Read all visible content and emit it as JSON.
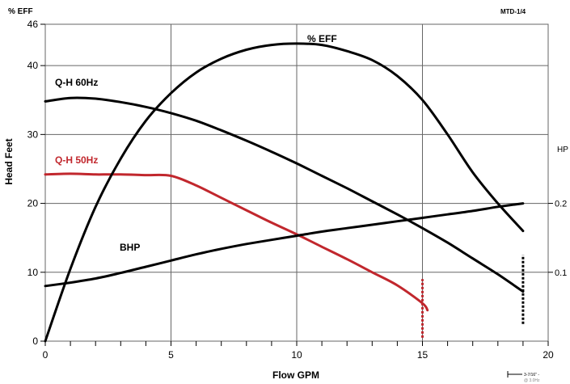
{
  "chart_data": {
    "type": "line",
    "model": "MTD-1/4",
    "top_left_label": "% EFF",
    "xlabel": "Flow GPM",
    "ylabel": "Head Feet",
    "y2label": "HP",
    "xlim": [
      0,
      20
    ],
    "ylim": [
      0,
      46
    ],
    "y2lim": [
      0,
      0.46
    ],
    "x_ticks": [
      0,
      5,
      10,
      15,
      20
    ],
    "x_tick_labels": [
      "0",
      "5",
      "10",
      "15",
      "20"
    ],
    "y_ticks": [
      0,
      10,
      20,
      30,
      40,
      46
    ],
    "y_tick_labels": [
      "0",
      "10",
      "20",
      "30",
      "40",
      "46"
    ],
    "y2_ticks": [
      0.1,
      0.2
    ],
    "y2_tick_labels": [
      "0.1",
      "0.2"
    ],
    "grid": true,
    "series": [
      {
        "name": "Q-H 60Hz",
        "color": "#000000",
        "axis": "left",
        "x": [
          0,
          1,
          2,
          3,
          4,
          5,
          6,
          7,
          8,
          9,
          10,
          11,
          12,
          13,
          14,
          15,
          16,
          17,
          18,
          19
        ],
        "y": [
          34.8,
          35.3,
          35.2,
          34.7,
          34.0,
          33.1,
          32.0,
          30.6,
          29.1,
          27.5,
          25.8,
          24.0,
          22.2,
          20.3,
          18.4,
          16.4,
          14.3,
          12.0,
          9.7,
          7.2
        ]
      },
      {
        "name": "Q-H 50Hz",
        "color": "#c1272d",
        "axis": "left",
        "x": [
          0,
          1,
          2,
          3,
          4,
          5,
          6,
          7,
          8,
          9,
          10,
          11,
          12,
          13,
          14,
          15,
          15.2
        ],
        "y": [
          24.2,
          24.3,
          24.2,
          24.2,
          24.1,
          24.0,
          22.6,
          20.8,
          19.0,
          17.2,
          15.5,
          13.7,
          11.9,
          10.0,
          8.1,
          5.5,
          4.5
        ]
      },
      {
        "name": "% EFF",
        "color": "#000000",
        "axis": "left",
        "x": [
          0,
          1,
          2,
          3,
          4,
          5,
          6,
          7,
          8,
          9,
          10,
          11,
          12,
          13,
          14,
          15,
          16,
          17,
          18,
          19
        ],
        "y": [
          0,
          10.5,
          19.5,
          26.5,
          32.0,
          36.0,
          39.0,
          41.0,
          42.3,
          43.0,
          43.2,
          43.0,
          42.1,
          40.8,
          38.5,
          35.0,
          30.0,
          24.5,
          20.0,
          16.0
        ]
      },
      {
        "name": "BHP",
        "color": "#000000",
        "axis": "right",
        "x": [
          0,
          1,
          2,
          3,
          4,
          5,
          6,
          7,
          8,
          9,
          10,
          11,
          12,
          13,
          14,
          15,
          16,
          17,
          18,
          19
        ],
        "y": [
          0.08,
          0.085,
          0.091,
          0.099,
          0.108,
          0.117,
          0.126,
          0.134,
          0.141,
          0.147,
          0.153,
          0.159,
          0.164,
          0.169,
          0.174,
          0.179,
          0.184,
          0.189,
          0.195,
          0.2
        ]
      }
    ],
    "limit_markers": [
      {
        "x": 15,
        "y_from": 0.5,
        "y_to": 9.0,
        "color": "#c1272d"
      },
      {
        "x": 19,
        "y_from": 2.5,
        "y_to": 12.5,
        "color": "#000000"
      }
    ],
    "dimension_note": [
      "3-7/16\" -",
      "@ 3.0Hz"
    ]
  }
}
